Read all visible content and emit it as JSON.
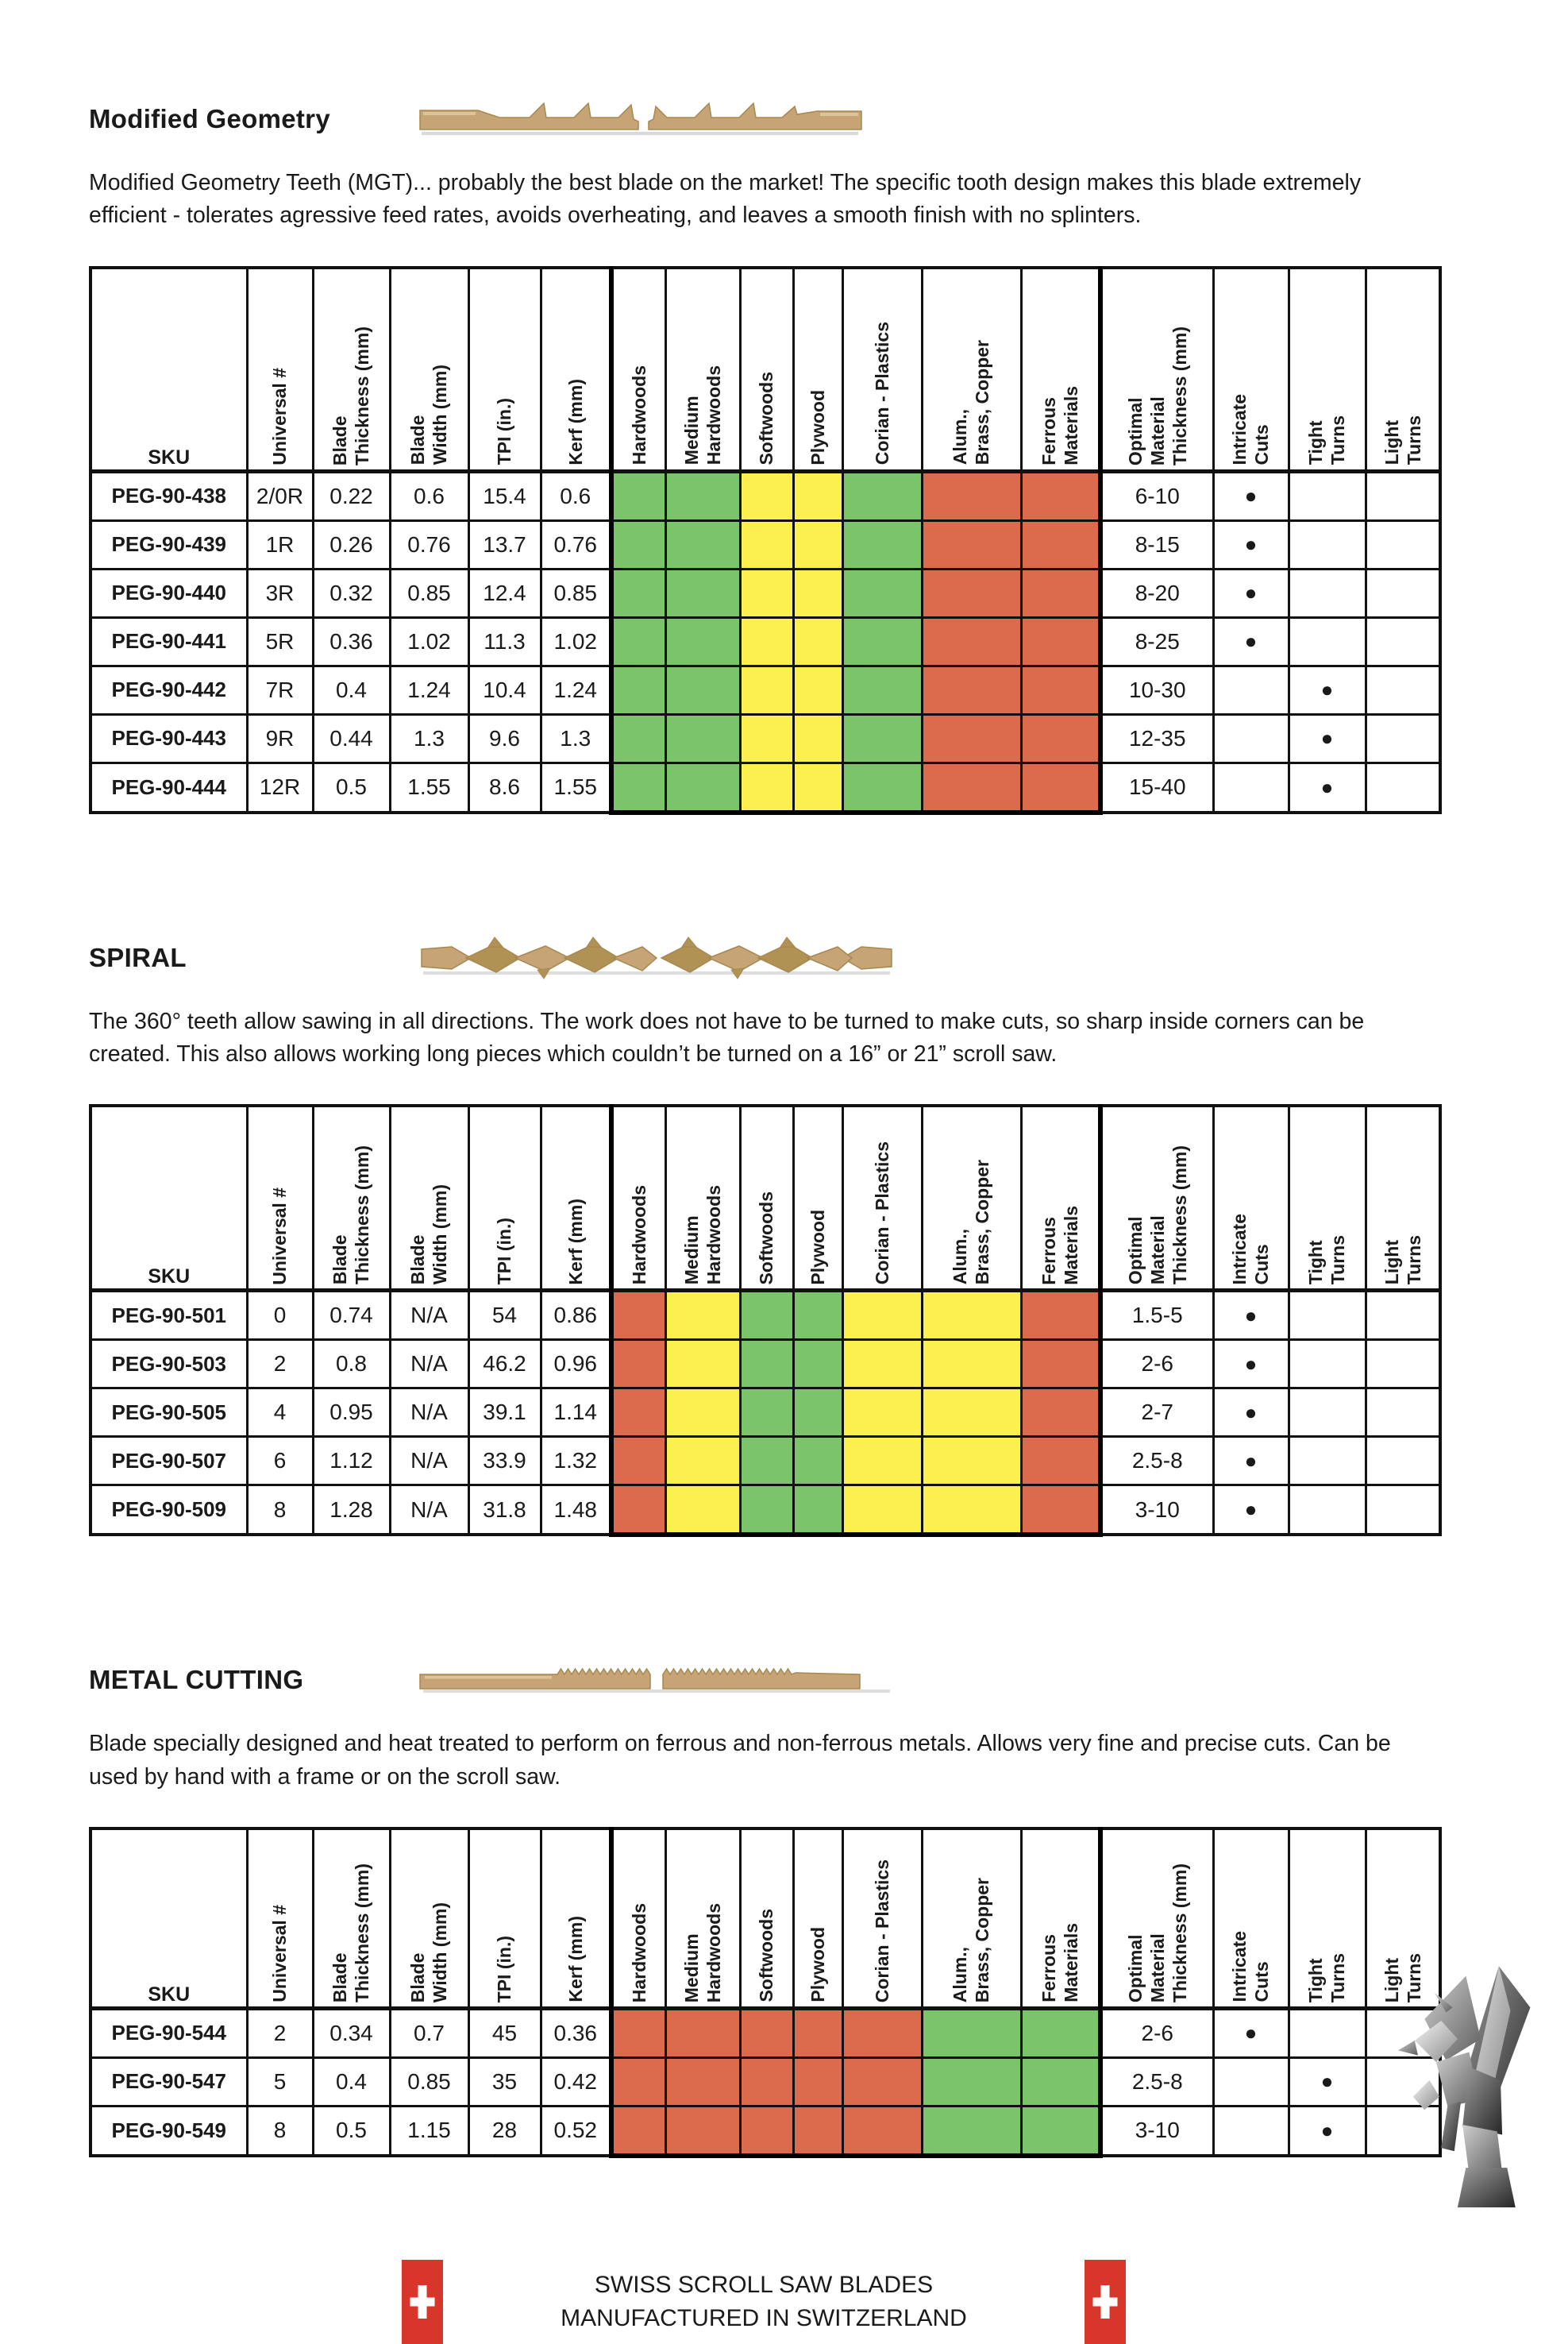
{
  "page": {
    "colors": {
      "green": "#7cc469",
      "yellow": "#fbf04d",
      "red": "#dc6b4e",
      "swiss_red": "#d8362b",
      "blade_tan": "#c7a476"
    },
    "footer": {
      "line1": "SWISS SCROLL SAW BLADES",
      "line2": "MANUFACTURED IN SWITZERLAND"
    }
  },
  "columns": {
    "sku": "SKU",
    "universal": "Universal #",
    "thickness": "Blade\nThickness (mm)",
    "width": "Blade\nWidth (mm)",
    "tpi": "TPI (in.)",
    "kerf": "Kerf (mm)",
    "hardwoods": "Hardwoods",
    "medium": "Medium\nHardwoods",
    "softwoods": "Softwoods",
    "plywood": "Plywood",
    "corian": "Corian - Plastics",
    "alum": "Alum.,\nBrass, Copper",
    "ferrous": "Ferrous\nMaterials",
    "optimal": "Optimal\nMaterial\nThickness (mm)",
    "intricate": "Intricate\nCuts",
    "tight": "Tight\nTurns",
    "light": "Light\nTurns"
  },
  "sections": [
    {
      "heading": "Modified Geometry",
      "description": "Modified Geometry Teeth (MGT)... probably the best blade on the market! The specific tooth design makes this blade extremely\nefficient - tolerates agressive feed rates, avoids overheating, and leaves a smooth finish with no splinters.",
      "materials": [
        "green",
        "green",
        "yellow",
        "yellow",
        "green",
        "red",
        "red"
      ],
      "rows": [
        {
          "sku": "PEG-90-438",
          "universal": "2/0R",
          "thickness": "0.22",
          "width": "0.6",
          "tpi": "15.4",
          "kerf": "0.6",
          "optimal": "6-10",
          "dot": "intricate"
        },
        {
          "sku": "PEG-90-439",
          "universal": "1R",
          "thickness": "0.26",
          "width": "0.76",
          "tpi": "13.7",
          "kerf": "0.76",
          "optimal": "8-15",
          "dot": "intricate"
        },
        {
          "sku": "PEG-90-440",
          "universal": "3R",
          "thickness": "0.32",
          "width": "0.85",
          "tpi": "12.4",
          "kerf": "0.85",
          "optimal": "8-20",
          "dot": "intricate"
        },
        {
          "sku": "PEG-90-441",
          "universal": "5R",
          "thickness": "0.36",
          "width": "1.02",
          "tpi": "11.3",
          "kerf": "1.02",
          "optimal": "8-25",
          "dot": "intricate"
        },
        {
          "sku": "PEG-90-442",
          "universal": "7R",
          "thickness": "0.4",
          "width": "1.24",
          "tpi": "10.4",
          "kerf": "1.24",
          "optimal": "10-30",
          "dot": "tight"
        },
        {
          "sku": "PEG-90-443",
          "universal": "9R",
          "thickness": "0.44",
          "width": "1.3",
          "tpi": "9.6",
          "kerf": "1.3",
          "optimal": "12-35",
          "dot": "tight"
        },
        {
          "sku": "PEG-90-444",
          "universal": "12R",
          "thickness": "0.5",
          "width": "1.55",
          "tpi": "8.6",
          "kerf": "1.55",
          "optimal": "15-40",
          "dot": "tight"
        }
      ]
    },
    {
      "heading": "SPIRAL",
      "description": "The 360° teeth allow sawing in all directions. The work does not have to be turned to make cuts, so sharp inside corners can be\ncreated. This also allows working long pieces which couldn’t be turned on a 16” or 21” scroll saw.",
      "materials": [
        "red",
        "yellow",
        "green",
        "green",
        "yellow",
        "yellow",
        "red"
      ],
      "rows": [
        {
          "sku": "PEG-90-501",
          "universal": "0",
          "thickness": "0.74",
          "width": "N/A",
          "tpi": "54",
          "kerf": "0.86",
          "optimal": "1.5-5",
          "dot": "intricate"
        },
        {
          "sku": "PEG-90-503",
          "universal": "2",
          "thickness": "0.8",
          "width": "N/A",
          "tpi": "46.2",
          "kerf": "0.96",
          "optimal": "2-6",
          "dot": "intricate"
        },
        {
          "sku": "PEG-90-505",
          "universal": "4",
          "thickness": "0.95",
          "width": "N/A",
          "tpi": "39.1",
          "kerf": "1.14",
          "optimal": "2-7",
          "dot": "intricate"
        },
        {
          "sku": "PEG-90-507",
          "universal": "6",
          "thickness": "1.12",
          "width": "N/A",
          "tpi": "33.9",
          "kerf": "1.32",
          "optimal": "2.5-8",
          "dot": "intricate"
        },
        {
          "sku": "PEG-90-509",
          "universal": "8",
          "thickness": "1.28",
          "width": "N/A",
          "tpi": "31.8",
          "kerf": "1.48",
          "optimal": "3-10",
          "dot": "intricate"
        }
      ]
    },
    {
      "heading": "METAL CUTTING",
      "description": "Blade specially designed and heat treated to perform on ferrous and non-ferrous metals. Allows very fine and precise cuts. Can be\nused by hand with a frame or on the scroll saw.",
      "materials": [
        "red",
        "red",
        "red",
        "red",
        "red",
        "green",
        "green"
      ],
      "rows": [
        {
          "sku": "PEG-90-544",
          "universal": "2",
          "thickness": "0.34",
          "width": "0.7",
          "tpi": "45",
          "kerf": "0.36",
          "optimal": "2-6",
          "dot": "intricate"
        },
        {
          "sku": "PEG-90-547",
          "universal": "5",
          "thickness": "0.4",
          "width": "0.85",
          "tpi": "35",
          "kerf": "0.42",
          "optimal": "2.5-8",
          "dot": "tight"
        },
        {
          "sku": "PEG-90-549",
          "universal": "8",
          "thickness": "0.5",
          "width": "1.15",
          "tpi": "28",
          "kerf": "0.52",
          "optimal": "3-10",
          "dot": "tight"
        }
      ]
    }
  ]
}
